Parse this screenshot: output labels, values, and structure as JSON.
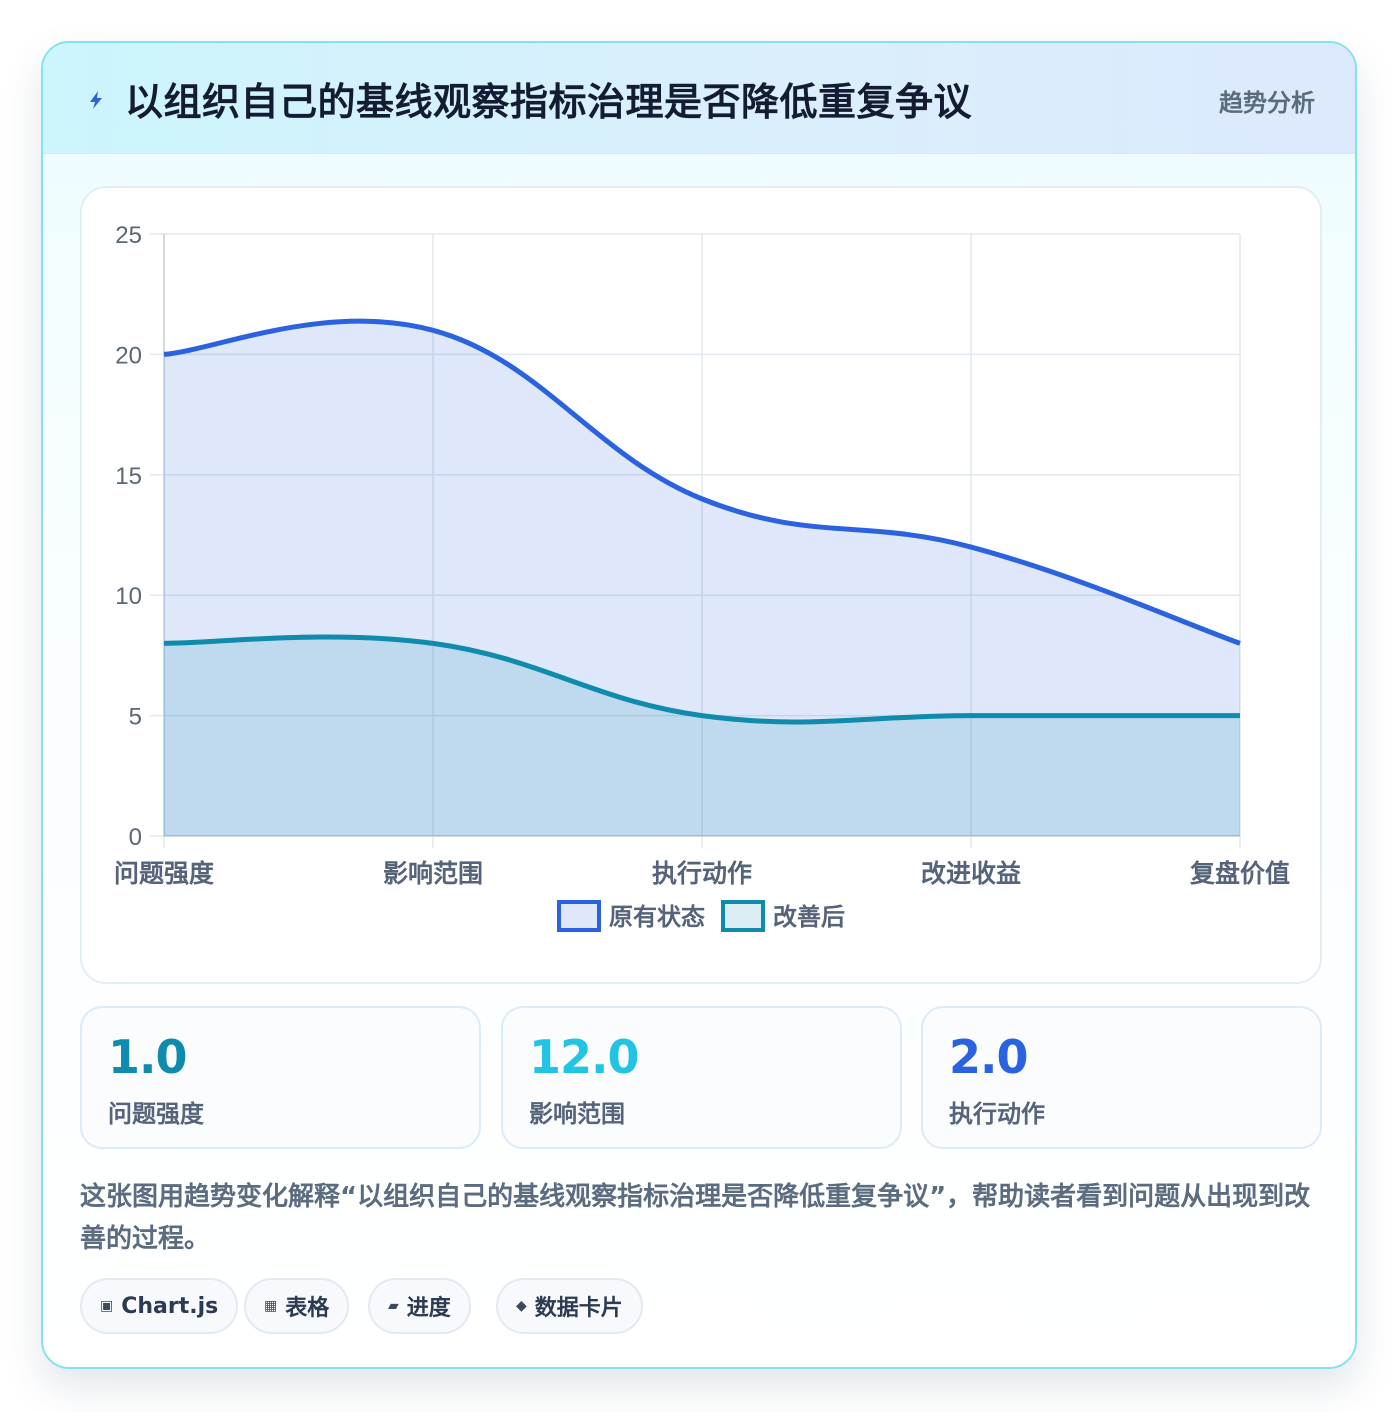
{
  "header": {
    "title": "以组织自己的基线观察指标治理是否降低重复争议",
    "tag": "趋势分析"
  },
  "colors": {
    "series_original": "#2a62e0",
    "series_improved": "#0e8bad",
    "stat_1": "#0e8bad",
    "stat_2": "#22c4e4",
    "stat_3": "#2a62e0"
  },
  "chart_data": {
    "type": "area",
    "categories": [
      "问题强度",
      "影响范围",
      "执行动作",
      "改进收益",
      "复盘价值"
    ],
    "series": [
      {
        "name": "原有状态",
        "values": [
          20,
          21,
          14,
          12,
          8
        ]
      },
      {
        "name": "改善后",
        "values": [
          8,
          8,
          5,
          5,
          5
        ]
      }
    ],
    "y_ticks": [
      "0",
      "5",
      "10",
      "15",
      "20",
      "25"
    ],
    "ylim": [
      0,
      25
    ],
    "grid": true,
    "legend_position": "bottom",
    "curve": "smooth",
    "title": "",
    "xlabel": "",
    "ylabel": ""
  },
  "stats": [
    {
      "value": "1.0",
      "label": "问题强度"
    },
    {
      "value": "12.0",
      "label": "影响范围"
    },
    {
      "value": "2.0",
      "label": "执行动作"
    }
  ],
  "description": "这张图用趋势变化解释“以组织自己的基线观察指标治理是否降低重复争议”，帮助读者看到问题从出现到改善的过程。",
  "chips": [
    {
      "icon": "▣",
      "icon_name": "chart-icon",
      "label": "Chart.js"
    },
    {
      "icon": "▦",
      "icon_name": "table-icon",
      "label": "表格"
    },
    {
      "icon": "▰",
      "icon_name": "progress-icon",
      "label": "进度"
    },
    {
      "icon": "◆",
      "icon_name": "card-icon",
      "label": "数据卡片"
    }
  ]
}
